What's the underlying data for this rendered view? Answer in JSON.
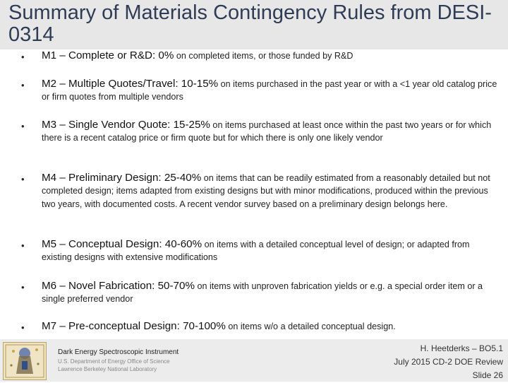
{
  "slide": {
    "title": "Summary of Materials Contingency Rules from DESI-0314"
  },
  "rules": [
    {
      "bullet": "•",
      "heading": "M1 – Complete or R&D: 0%",
      "body": " on completed items, or those funded by R&D"
    },
    {
      "bullet": "•",
      "heading": "M2 – Multiple Quotes/Travel: 10-15%",
      "body": " on items purchased in the past year or with a <1 year old catalog price or firm quotes from multiple vendors"
    },
    {
      "bullet": "•",
      "heading": "M3 – Single Vendor Quote: 15-25%",
      "body": " on items purchased at least once within the past two years or for which there is a recent catalog price or firm quote but for which there is only one likely vendor"
    },
    {
      "bullet": "•",
      "heading": "M4 – Preliminary Design: 25-40%",
      "body": " on items that can be readily estimated from a reasonably detailed but not completed design; items adapted from existing designs but with minor modifications, produced within the previous two years, with documented costs. A recent vendor survey based on a preliminary design belongs here."
    },
    {
      "bullet": "•",
      "heading": "M5 – Conceptual Design: 40-60%",
      "body": " on items with a detailed conceptual level of design; or adapted from existing designs with extensive modifications"
    },
    {
      "bullet": "•",
      "heading": "M6 – Novel Fabrication: 50-70%",
      "body": " on items with unproven fabrication yields or e.g. a special order item or a single preferred vendor"
    },
    {
      "bullet": "•",
      "heading": "M7 – Pre-conceptual Design: 70-100%",
      "body": " on items w/o a detailed conceptual design."
    }
  ],
  "footer": {
    "org": "Dark Energy Spectroscopic Instrument",
    "sponsor": "U.S. Department of Energy Office of Science",
    "lab": "Lawrence Berkeley National Laboratory",
    "author": "H. Heetderks – BO5.1",
    "review": "July 2015 CD-2 DOE Review",
    "slide_number": "Slide 26",
    "logo_icon": "desi-logo-icon"
  }
}
